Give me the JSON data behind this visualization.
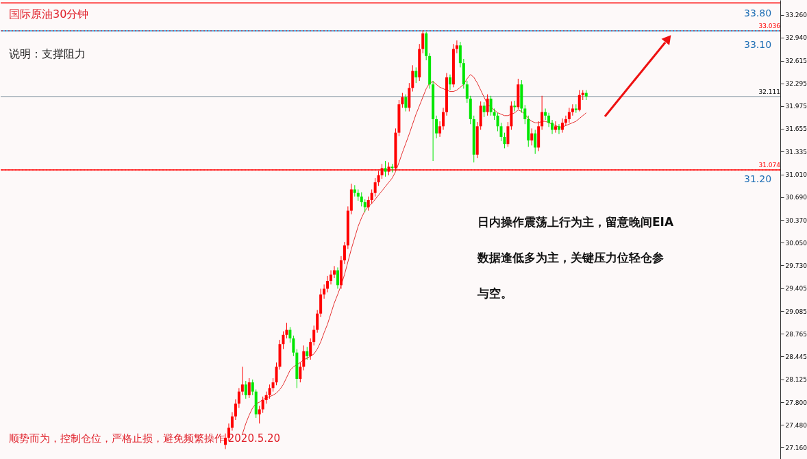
{
  "chart_data": {
    "type": "candlestick",
    "title": "国际原油30分钟",
    "subtitle": "说明：支撑阻力",
    "annotations": [
      "日内操作震荡上行为主，留意晚间EIA数据逢低多为主，关键压力位轻仓参与空。",
      "顺势而为，控制仓位，严格止损，避免频繁操作  2020.5.20",
      "33.80",
      "33.10",
      "31.20"
    ],
    "categories": [
      null,
      null,
      null,
      null,
      null,
      null,
      null,
      null,
      null,
      null,
      null,
      null,
      null,
      null,
      null,
      null,
      null,
      null,
      null,
      null,
      null,
      null,
      null,
      null,
      null,
      null,
      null,
      null,
      null,
      null,
      null,
      null,
      null,
      null,
      null,
      null,
      null,
      null,
      null,
      null,
      null,
      null,
      null,
      null,
      null,
      null,
      null,
      null,
      null,
      null,
      null,
      null,
      null,
      null,
      null,
      null,
      null,
      null,
      null,
      null,
      null,
      null,
      null,
      null,
      null,
      null,
      null,
      null,
      null,
      null,
      null,
      null,
      null,
      null,
      null,
      null,
      null,
      null,
      null,
      null,
      null,
      null,
      null,
      null,
      null,
      null,
      null,
      null,
      null,
      null,
      null,
      null,
      null,
      null,
      null,
      null,
      null,
      null,
      null,
      null,
      null,
      null,
      null,
      null,
      null,
      null,
      null,
      null,
      null,
      null,
      null,
      null,
      null,
      null,
      null,
      null,
      null,
      null,
      null,
      null,
      null,
      null,
      null,
      null,
      null,
      null,
      null,
      null,
      null,
      null,
      null,
      null,
      null,
      null,
      null,
      null,
      null,
      null,
      null,
      null,
      null,
      null,
      null,
      null,
      null,
      null,
      null,
      null,
      null,
      null,
      null,
      null,
      null,
      null,
      null,
      null,
      null,
      null,
      null,
      null,
      null,
      null,
      null,
      null,
      null,
      null,
      null,
      null,
      null,
      null,
      null,
      null,
      null,
      null,
      null,
      null,
      null,
      null,
      null,
      null,
      null,
      null,
      null,
      null,
      null,
      null,
      null,
      null,
      null,
      null,
      null,
      null,
      null,
      null,
      null,
      null,
      null,
      null,
      null,
      null,
      null,
      null,
      null,
      null,
      null,
      null,
      null,
      null,
      null,
      null,
      null,
      null,
      null,
      null,
      null,
      null,
      null,
      null,
      null,
      null,
      null,
      null,
      null,
      null,
      null,
      null,
      null,
      null
    ],
    "ohlc": [
      null,
      null,
      null,
      null,
      null,
      null,
      null,
      null,
      null,
      null,
      null,
      null,
      null,
      null,
      null,
      null,
      null,
      null,
      null,
      null,
      null,
      null,
      null,
      null,
      null,
      null,
      null,
      null,
      null,
      null,
      null,
      null,
      null,
      null,
      null,
      null,
      null,
      null,
      null,
      null,
      null,
      null,
      null,
      null,
      null,
      null,
      null,
      null,
      null,
      null,
      null,
      null,
      null,
      null,
      null,
      null,
      null,
      null,
      null,
      null,
      null,
      null,
      null,
      null,
      null,
      [
        27.2,
        27.36,
        27.14,
        27.3
      ],
      [
        27.3,
        27.5,
        27.25,
        27.44
      ],
      [
        27.44,
        27.66,
        27.4,
        27.6
      ],
      [
        27.6,
        27.84,
        27.55,
        27.78
      ],
      [
        27.78,
        28.0,
        27.72,
        27.95
      ],
      [
        27.95,
        28.3,
        27.9,
        28.05
      ],
      [
        28.05,
        28.1,
        27.85,
        27.9
      ],
      [
        27.9,
        28.14,
        27.86,
        28.08
      ],
      [
        28.08,
        28.12,
        27.9,
        27.95
      ],
      [
        27.95,
        27.98,
        27.58,
        27.63
      ],
      [
        27.63,
        27.75,
        27.5,
        27.7
      ],
      [
        27.7,
        27.88,
        27.65,
        27.83
      ],
      [
        27.83,
        27.95,
        27.78,
        27.9
      ],
      [
        27.9,
        28.05,
        27.85,
        28.0
      ],
      [
        28.0,
        28.14,
        27.95,
        28.08
      ],
      [
        28.08,
        28.36,
        28.04,
        28.3
      ],
      [
        28.3,
        28.68,
        28.26,
        28.62
      ],
      [
        28.62,
        28.8,
        28.55,
        28.75
      ],
      [
        28.75,
        28.92,
        28.7,
        28.82
      ],
      [
        28.82,
        28.86,
        28.64,
        28.7
      ],
      [
        28.7,
        28.74,
        28.45,
        28.5
      ],
      [
        28.5,
        28.55,
        28.0,
        28.13
      ],
      [
        28.13,
        28.36,
        28.08,
        28.3
      ],
      [
        28.3,
        28.6,
        28.25,
        28.52
      ],
      [
        28.52,
        28.58,
        28.4,
        28.45
      ],
      [
        28.45,
        28.7,
        28.4,
        28.65
      ],
      [
        28.65,
        28.88,
        28.6,
        28.82
      ],
      [
        28.82,
        29.1,
        28.78,
        29.05
      ],
      [
        29.05,
        29.4,
        29.0,
        29.32
      ],
      [
        29.32,
        29.46,
        29.26,
        29.4
      ],
      [
        29.4,
        29.58,
        29.35,
        29.51
      ],
      [
        29.51,
        29.66,
        29.46,
        29.6
      ],
      [
        29.6,
        29.72,
        29.55,
        29.66
      ],
      [
        29.66,
        29.7,
        29.4,
        29.45
      ],
      [
        29.45,
        29.86,
        29.4,
        29.8
      ],
      [
        29.8,
        30.06,
        29.75,
        30.01
      ],
      [
        30.01,
        30.56,
        29.96,
        30.5
      ],
      [
        30.5,
        30.88,
        30.45,
        30.8
      ],
      [
        30.8,
        30.86,
        30.7,
        30.75
      ],
      [
        30.75,
        30.8,
        30.64,
        30.7
      ],
      [
        30.7,
        30.76,
        30.56,
        30.62
      ],
      [
        30.62,
        30.66,
        30.48,
        30.55
      ],
      [
        30.55,
        30.7,
        30.5,
        30.65
      ],
      [
        30.65,
        30.8,
        30.6,
        30.75
      ],
      [
        30.75,
        30.96,
        30.7,
        30.9
      ],
      [
        30.9,
        31.06,
        30.85,
        31.0
      ],
      [
        31.0,
        31.16,
        30.95,
        31.1
      ],
      [
        31.1,
        31.2,
        30.98,
        31.05
      ],
      [
        31.05,
        31.18,
        31.0,
        31.12
      ],
      [
        31.12,
        31.16,
        31.04,
        31.1
      ],
      [
        31.1,
        31.66,
        31.06,
        31.6
      ],
      [
        31.6,
        32.06,
        31.55,
        32.0
      ],
      [
        32.0,
        32.16,
        31.95,
        32.1
      ],
      [
        32.1,
        32.14,
        31.9,
        31.95
      ],
      [
        31.95,
        32.3,
        31.9,
        32.23
      ],
      [
        32.23,
        32.55,
        32.18,
        32.47
      ],
      [
        32.47,
        32.52,
        32.3,
        32.38
      ],
      [
        32.38,
        32.85,
        32.33,
        32.78
      ],
      [
        32.78,
        33.04,
        32.72,
        33.0
      ],
      [
        33.0,
        33.02,
        32.62,
        32.68
      ],
      [
        32.68,
        32.72,
        32.22,
        32.28
      ],
      [
        32.28,
        32.33,
        31.2,
        31.79
      ],
      [
        31.79,
        31.84,
        31.52,
        31.59
      ],
      [
        31.59,
        31.76,
        31.54,
        31.69
      ],
      [
        31.69,
        31.95,
        31.64,
        31.89
      ],
      [
        31.89,
        32.44,
        31.84,
        32.38
      ],
      [
        32.38,
        32.42,
        32.2,
        32.28
      ],
      [
        32.28,
        32.85,
        32.24,
        32.78
      ],
      [
        32.78,
        32.9,
        32.72,
        32.83
      ],
      [
        32.83,
        32.88,
        32.52,
        32.58
      ],
      [
        32.58,
        32.64,
        32.22,
        32.28
      ],
      [
        32.28,
        32.33,
        32.02,
        32.08
      ],
      [
        32.08,
        32.12,
        31.72,
        31.79
      ],
      [
        31.79,
        31.84,
        31.18,
        31.29
      ],
      [
        31.29,
        31.75,
        31.24,
        31.69
      ],
      [
        31.69,
        32.04,
        31.64,
        31.98
      ],
      [
        31.98,
        32.03,
        31.82,
        31.89
      ],
      [
        31.89,
        32.14,
        31.84,
        32.08
      ],
      [
        32.08,
        32.12,
        31.84,
        31.89
      ],
      [
        31.89,
        31.94,
        31.78,
        31.84
      ],
      [
        31.84,
        31.88,
        31.62,
        31.69
      ],
      [
        31.69,
        31.74,
        31.48,
        31.54
      ],
      [
        31.54,
        31.6,
        31.38,
        31.44
      ],
      [
        31.44,
        31.75,
        31.4,
        31.69
      ],
      [
        31.69,
        32.04,
        31.64,
        31.98
      ],
      [
        31.98,
        32.05,
        31.9,
        31.96
      ],
      [
        31.96,
        32.36,
        31.93,
        32.28
      ],
      [
        32.28,
        32.34,
        31.88,
        31.94
      ],
      [
        31.94,
        31.99,
        31.72,
        31.79
      ],
      [
        31.79,
        31.84,
        31.4,
        31.49
      ],
      [
        31.49,
        31.66,
        31.42,
        31.59
      ],
      [
        31.59,
        31.64,
        31.3,
        31.39
      ],
      [
        31.39,
        31.76,
        31.34,
        31.69
      ],
      [
        31.69,
        32.12,
        31.64,
        31.89
      ],
      [
        31.89,
        31.94,
        31.78,
        31.84
      ],
      [
        31.84,
        31.88,
        31.68,
        31.74
      ],
      [
        31.74,
        31.78,
        31.58,
        31.64
      ],
      [
        31.64,
        31.76,
        31.6,
        31.69
      ],
      [
        31.69,
        31.72,
        31.58,
        31.64
      ],
      [
        31.64,
        31.8,
        31.6,
        31.74
      ],
      [
        31.74,
        31.84,
        31.7,
        31.79
      ],
      [
        31.79,
        31.95,
        31.74,
        31.89
      ],
      [
        31.89,
        32.0,
        31.84,
        31.94
      ],
      [
        31.94,
        32.0,
        31.88,
        31.92
      ],
      [
        31.92,
        32.2,
        31.9,
        32.13
      ],
      [
        32.13,
        32.2,
        32.06,
        32.16
      ],
      [
        32.16,
        32.2,
        32.06,
        32.11
      ],
      null,
      null,
      null,
      null,
      null,
      null,
      null,
      null,
      null,
      null,
      null,
      null,
      null,
      null,
      null,
      null,
      null,
      null,
      null,
      null,
      null,
      null,
      null,
      null,
      null,
      null,
      null,
      null,
      null,
      null,
      null,
      null,
      null,
      null,
      null,
      null,
      null,
      null,
      null,
      null,
      null,
      null,
      null,
      null,
      null,
      null,
      null,
      null,
      null,
      null,
      null,
      null,
      null,
      null,
      null,
      null
    ],
    "colors": [
      null,
      null,
      null,
      null,
      null,
      null,
      null,
      null,
      null,
      null,
      null,
      null,
      null,
      null,
      null,
      null,
      null,
      null,
      null,
      null,
      null,
      null,
      null,
      null,
      null,
      null,
      null,
      null,
      null,
      null,
      null,
      null,
      null,
      null,
      null,
      null,
      null,
      null,
      null,
      null,
      null,
      null,
      null,
      null,
      null,
      null,
      null,
      null,
      null,
      null,
      null,
      null,
      null,
      null,
      null,
      null,
      null,
      null,
      null,
      null,
      null,
      null,
      null,
      null,
      null,
      "#ff0000",
      "#ff0000",
      "#ff0000",
      "#ff0000",
      "#ff0000",
      "#ff0000",
      "#00e600",
      "#ff0000",
      "#00e600",
      "#00e600",
      "#ff0000",
      "#ff0000",
      "#ff0000",
      "#ff0000",
      "#ff0000",
      "#ff0000",
      "#ff0000",
      "#ff0000",
      "#ff0000",
      "#00e600",
      "#00e600",
      "#00e600",
      "#ff0000",
      "#ff0000",
      "#00e600",
      "#ff0000",
      "#ff0000",
      "#ff0000",
      "#ff0000",
      "#ff0000",
      "#ff0000",
      "#ff0000",
      "#ff0000",
      "#00e600",
      "#ff0000",
      "#ff0000",
      "#ff0000",
      "#ff0000",
      "#00e600",
      "#00e600",
      "#00e600",
      "#00e600",
      "#ff0000",
      "#ff0000",
      "#ff0000",
      "#ff0000",
      "#ff0000",
      "#00e600",
      "#ff0000",
      "#00e600",
      "#ff0000",
      "#ff0000",
      "#ff0000",
      "#00e600",
      "#ff0000",
      "#ff0000",
      "#00e600",
      "#ff0000",
      "#ff0000",
      "#00e600",
      "#00e600",
      "#00e600",
      "#00e600",
      "#ff0000",
      "#ff0000",
      "#ff0000",
      "#00e600",
      "#ff0000",
      "#ff0000",
      "#00e600",
      "#00e600",
      "#00e600",
      "#00e600",
      "#00e600",
      "#ff0000",
      "#ff0000",
      "#00e600",
      "#ff0000",
      "#00e600",
      "#00e600",
      "#00e600",
      "#00e600",
      "#00e600",
      "#ff0000",
      "#ff0000",
      "#00e600",
      "#ff0000",
      "#00e600",
      "#00e600",
      "#00e600",
      "#ff0000",
      "#00e600",
      "#ff0000",
      "#ff0000",
      "#00e600",
      "#00e600",
      "#00e600",
      "#ff0000",
      "#00e600",
      "#ff0000",
      "#ff0000",
      "#ff0000",
      "#ff0000",
      "#00e600",
      "#ff0000",
      "#ff0000",
      "#00e600",
      null,
      null,
      null,
      null,
      null,
      null,
      null,
      null,
      null,
      null,
      null,
      null,
      null,
      null,
      null,
      null,
      null,
      null,
      null,
      null,
      null,
      null,
      null,
      null,
      null,
      null,
      null,
      null,
      null,
      null,
      null,
      null,
      null,
      null,
      null,
      null,
      null,
      null,
      null,
      null,
      null,
      null,
      null,
      null,
      null,
      null,
      null,
      null,
      null,
      null,
      null,
      null,
      null,
      null,
      null,
      null
    ],
    "series": [
      {
        "type": "line",
        "color": "#e53030",
        "values": [
          null,
          null,
          null,
          null,
          null,
          null,
          null,
          null,
          null,
          null,
          null,
          null,
          null,
          null,
          null,
          null,
          null,
          null,
          null,
          null,
          null,
          null,
          null,
          null,
          null,
          null,
          null,
          null,
          null,
          null,
          null,
          null,
          null,
          null,
          null,
          null,
          null,
          null,
          null,
          null,
          null,
          null,
          null,
          null,
          null,
          null,
          null,
          null,
          null,
          null,
          null,
          null,
          null,
          null,
          null,
          null,
          null,
          null,
          null,
          null,
          null,
          null,
          null,
          null,
          null,
          null,
          null,
          null,
          null,
          null,
          27.35,
          27.5,
          27.62,
          27.72,
          27.78,
          27.8,
          27.84,
          27.86,
          27.88,
          27.9,
          27.93,
          27.98,
          28.05,
          28.15,
          28.25,
          28.3,
          28.33,
          28.36,
          28.4,
          28.42,
          28.45,
          28.48,
          28.55,
          28.65,
          28.78,
          28.9,
          29.05,
          29.2,
          29.32,
          29.45,
          29.6,
          29.78,
          29.96,
          30.12,
          30.28,
          30.4,
          30.5,
          30.56,
          30.6,
          30.66,
          30.72,
          30.78,
          30.84,
          30.9,
          30.96,
          31.05,
          31.18,
          31.32,
          31.45,
          31.58,
          31.72,
          31.86,
          31.98,
          32.1,
          32.22,
          32.3,
          32.32,
          32.28,
          32.24,
          32.22,
          32.2,
          32.18,
          32.18,
          32.2,
          32.24,
          32.28,
          32.36,
          32.42,
          32.38,
          32.3,
          32.2,
          32.1,
          32.0,
          31.96,
          31.92,
          31.88,
          31.86,
          31.84,
          31.84,
          31.86,
          31.88,
          31.92,
          31.9,
          31.86,
          31.8,
          31.76,
          31.74,
          31.74,
          31.76,
          31.76,
          31.74,
          31.72,
          31.7,
          31.68,
          31.68,
          31.7,
          31.72,
          31.74,
          31.76,
          31.8,
          31.84,
          31.88,
          null,
          null,
          null,
          null,
          null,
          null,
          null,
          null,
          null,
          null,
          null,
          null,
          null,
          null,
          null,
          null,
          null,
          null,
          null,
          null,
          null,
          null,
          null,
          null,
          null,
          null,
          null,
          null,
          null,
          null,
          null,
          null,
          null,
          null,
          null,
          null,
          null,
          null,
          null,
          null,
          null,
          null,
          null,
          null,
          null,
          null,
          null,
          null,
          null,
          null,
          null,
          null,
          null,
          null,
          null,
          null
        ]
      }
    ],
    "ylim": [
      27.0,
      33.47
    ],
    "yticks": [
      {
        "value": 27.16,
        "label": "27.160"
      },
      {
        "value": 27.48,
        "label": "27.480"
      },
      {
        "value": 27.8,
        "label": "27.800"
      },
      {
        "value": 28.125,
        "label": "28.125"
      },
      {
        "value": 28.445,
        "label": "28.445"
      },
      {
        "value": 28.765,
        "label": "28.765"
      },
      {
        "value": 29.085,
        "label": "29.085"
      },
      {
        "value": 29.405,
        "label": "29.405"
      },
      {
        "value": 29.73,
        "label": "29.730"
      },
      {
        "value": 30.05,
        "label": "30.050"
      },
      {
        "value": 30.37,
        "label": "30.370"
      },
      {
        "value": 30.69,
        "label": "30.690"
      },
      {
        "value": 31.01,
        "label": "31.010"
      },
      {
        "value": 31.335,
        "label": "31.335"
      },
      {
        "value": 31.655,
        "label": "31.655"
      },
      {
        "value": 31.975,
        "label": "31.975"
      },
      {
        "value": 32.295,
        "label": "32.295"
      },
      {
        "value": 32.615,
        "label": "32.615"
      },
      {
        "value": 32.94,
        "label": "32.940"
      },
      {
        "value": 33.26,
        "label": "33.260"
      }
    ],
    "ref_lines": [
      {
        "axis": "y",
        "value": 33.43,
        "color": "#ff0000",
        "line_style": "solid"
      },
      {
        "axis": "y",
        "value": 33.036,
        "color": "#1ea0e0",
        "line_style": "solid"
      },
      {
        "axis": "y",
        "value": 31.074,
        "color": "#ff0000",
        "line_style": "solid"
      },
      {
        "axis": "y",
        "value": 32.111,
        "label": "32.111",
        "color": "#a9b4bd",
        "line_style": "solid"
      },
      {
        "axis": "y",
        "value": 33.036,
        "label": "33.036",
        "color": "#ff0000",
        "line_style": "dotted"
      },
      {
        "axis": "y",
        "value": 31.074,
        "label": "31.074",
        "color": "#ff0000",
        "line_style": "dotted"
      }
    ],
    "grid": false
  }
}
